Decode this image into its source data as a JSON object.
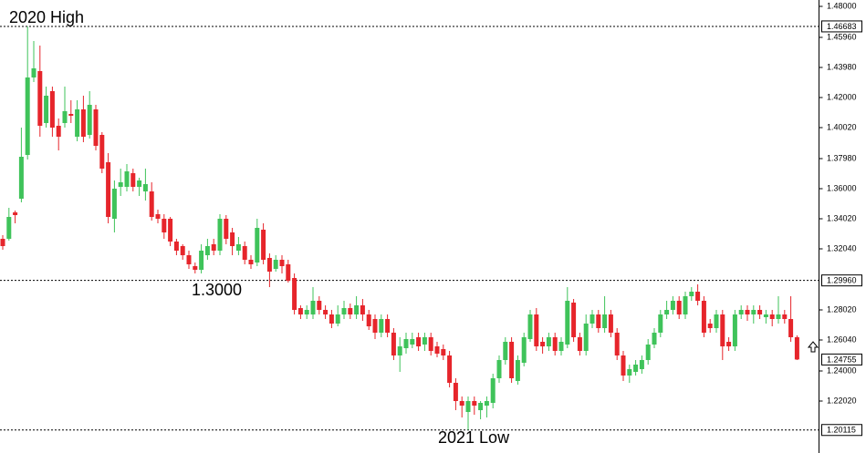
{
  "chart_data": {
    "type": "candlestick",
    "annotations": [
      {
        "text": "2020 High"
      },
      {
        "text": "1.3000"
      },
      {
        "text": "2021 Low"
      }
    ],
    "up_color": "#3fc35a",
    "down_color": "#e6252b",
    "ylim": [
      1.186,
      1.4842
    ],
    "yticks": [
      {
        "value": 1.48,
        "label": "1.48000"
      },
      {
        "value": 1.4596,
        "label": "1.45960"
      },
      {
        "value": 1.4398,
        "label": "1.43980"
      },
      {
        "value": 1.42,
        "label": "1.42000"
      },
      {
        "value": 1.4002,
        "label": "1.40020"
      },
      {
        "value": 1.3798,
        "label": "1.37980"
      },
      {
        "value": 1.36,
        "label": "1.36000"
      },
      {
        "value": 1.3402,
        "label": "1.34020"
      },
      {
        "value": 1.3204,
        "label": "1.32040"
      },
      {
        "value": 1.2802,
        "label": "1.28020"
      },
      {
        "value": 1.2604,
        "label": "1.26040"
      },
      {
        "value": 1.24,
        "label": "1.24000"
      },
      {
        "value": 1.2202,
        "label": "1.22020"
      }
    ],
    "levels": [
      {
        "value": 1.46683,
        "label": "1.46683"
      },
      {
        "value": 1.2996,
        "label": "1.29960"
      },
      {
        "value": 1.20115,
        "label": "1.20115"
      }
    ],
    "last_price": {
      "value": 1.24755,
      "label": "1.24755"
    },
    "open": [
      1.327,
      1.327,
      1.3444,
      1.3534,
      1.3822,
      1.4332,
      1.4374,
      1.4032,
      1.4242,
      1.4014,
      1.4032,
      1.4092,
      1.3942,
      1.4122,
      1.3954,
      1.4122,
      1.3954,
      1.3774,
      1.3402,
      1.3612,
      1.3612,
      1.3702,
      1.3612,
      1.3582,
      1.3582,
      1.3432,
      1.3402,
      1.3402,
      1.3252,
      1.3222,
      1.3162,
      1.309,
      1.3066,
      1.3162,
      1.3234,
      1.3192,
      1.3402,
      1.3312,
      1.3192,
      1.3222,
      1.3132,
      1.3114,
      1.333,
      1.3144,
      1.3072,
      1.3132,
      1.3102,
      1.3012,
      1.2814,
      1.2772,
      1.2772,
      1.2862,
      1.2802,
      1.2772,
      1.2712,
      1.2772,
      1.2814,
      1.2772,
      1.2832,
      1.2772,
      1.2742,
      1.2652,
      1.2742,
      1.2652,
      1.2502,
      1.255,
      1.2574,
      1.2622,
      1.2574,
      1.2622,
      1.2562,
      1.2544,
      1.2502,
      1.2322,
      1.2202,
      1.213,
      1.2202,
      1.2142,
      1.2172,
      1.219,
      1.2352,
      1.2472,
      1.2592,
      1.2334,
      1.2454,
      1.261,
      1.2772,
      1.2592,
      1.2562,
      1.2622,
      1.2532,
      1.2574,
      1.285,
      1.2622,
      1.2532,
      1.2712,
      1.2772,
      1.2682,
      1.2772,
      1.2652,
      1.2502,
      1.237,
      1.2394,
      1.2412,
      1.2472,
      1.2574,
      1.2652,
      1.2772,
      1.2802,
      1.2862,
      1.2772,
      1.2892,
      1.2922,
      1.2862,
      1.2712,
      1.2682,
      1.2772,
      1.2592,
      1.2562,
      1.2772,
      1.2802,
      1.2772,
      1.2802,
      1.2754,
      1.2772,
      1.2742,
      1.2772,
      1.2742,
      1.2622
    ],
    "high": [
      1.3294,
      1.3474,
      1.3456,
      1.4002,
      1.46683,
      1.4572,
      1.4542,
      1.4272,
      1.4272,
      1.4062,
      1.4272,
      1.4182,
      1.4182,
      1.4212,
      1.4242,
      1.4152,
      1.3972,
      1.3834,
      1.3654,
      1.3732,
      1.3762,
      1.3732,
      1.3672,
      1.3732,
      1.3642,
      1.3462,
      1.3432,
      1.3414,
      1.327,
      1.3234,
      1.3192,
      1.3114,
      1.3234,
      1.327,
      1.327,
      1.3432,
      1.3426,
      1.3342,
      1.3282,
      1.3252,
      1.3162,
      1.3402,
      1.3372,
      1.3174,
      1.3162,
      1.3162,
      1.3132,
      1.3042,
      1.2832,
      1.2832,
      1.2952,
      1.2892,
      1.2832,
      1.2802,
      1.2832,
      1.2862,
      1.2844,
      1.2892,
      1.2874,
      1.2802,
      1.2772,
      1.2772,
      1.2772,
      1.2682,
      1.2622,
      1.2652,
      1.2652,
      1.2652,
      1.2652,
      1.2652,
      1.2592,
      1.2574,
      1.2532,
      1.2352,
      1.2232,
      1.2232,
      1.2232,
      1.2202,
      1.2232,
      1.2382,
      1.2502,
      1.2622,
      1.2622,
      1.2502,
      1.2652,
      1.2802,
      1.2814,
      1.2622,
      1.2652,
      1.2652,
      1.2622,
      1.2952,
      1.2874,
      1.2652,
      1.2772,
      1.2802,
      1.2802,
      1.2892,
      1.2802,
      1.2682,
      1.2532,
      1.2442,
      1.2472,
      1.2502,
      1.261,
      1.2682,
      1.2802,
      1.2862,
      1.2892,
      1.2892,
      1.2922,
      1.2952,
      1.297,
      1.2892,
      1.2742,
      1.2802,
      1.2802,
      1.2622,
      1.2802,
      1.2832,
      1.2832,
      1.2832,
      1.2832,
      1.2802,
      1.2802,
      1.2892,
      1.2802,
      1.2892,
      1.2634
    ],
    "low": [
      1.3198,
      1.3258,
      1.3372,
      1.351,
      1.3792,
      1.4302,
      1.3942,
      1.4002,
      1.3942,
      1.3852,
      1.4002,
      1.4032,
      1.3912,
      1.3906,
      1.393,
      1.3852,
      1.3702,
      1.3372,
      1.3312,
      1.3552,
      1.3582,
      1.3582,
      1.3552,
      1.3522,
      1.339,
      1.3372,
      1.327,
      1.3222,
      1.3162,
      1.3132,
      1.3072,
      1.3042,
      1.3042,
      1.3132,
      1.3162,
      1.3162,
      1.3234,
      1.3162,
      1.3162,
      1.3102,
      1.3072,
      1.309,
      1.3102,
      1.2952,
      1.3054,
      1.3042,
      1.2982,
      1.2772,
      1.2742,
      1.2742,
      1.2742,
      1.2772,
      1.2742,
      1.2682,
      1.2694,
      1.2742,
      1.2742,
      1.2742,
      1.273,
      1.267,
      1.261,
      1.2622,
      1.2622,
      1.2472,
      1.2394,
      1.2514,
      1.255,
      1.2532,
      1.2532,
      1.2502,
      1.249,
      1.2472,
      1.2292,
      1.2142,
      1.2094,
      1.20115,
      1.2112,
      1.2082,
      1.2094,
      1.2154,
      1.2322,
      1.2442,
      1.2322,
      1.231,
      1.243,
      1.2592,
      1.2532,
      1.2514,
      1.2532,
      1.2502,
      1.2502,
      1.255,
      1.2592,
      1.2502,
      1.2502,
      1.2682,
      1.2652,
      1.2652,
      1.2622,
      1.2472,
      1.2334,
      1.2322,
      1.237,
      1.2382,
      1.2442,
      1.255,
      1.2622,
      1.2742,
      1.2772,
      1.2742,
      1.2742,
      1.2862,
      1.2832,
      1.2622,
      1.2652,
      1.2652,
      1.2472,
      1.2532,
      1.2532,
      1.2742,
      1.273,
      1.2712,
      1.2742,
      1.2712,
      1.2694,
      1.2712,
      1.2712,
      1.2592,
      1.2472
    ],
    "close": [
      1.3222,
      1.3414,
      1.3426,
      1.381,
      1.4332,
      1.4392,
      1.4014,
      1.4212,
      1.4002,
      1.3942,
      1.411,
      1.408,
      1.4122,
      1.3942,
      1.4152,
      1.3882,
      1.3732,
      1.3414,
      1.36,
      1.3642,
      1.3714,
      1.3612,
      1.3654,
      1.363,
      1.3414,
      1.3402,
      1.3312,
      1.3252,
      1.3192,
      1.3162,
      1.3102,
      1.3066,
      1.3192,
      1.3222,
      1.3192,
      1.3402,
      1.327,
      1.3222,
      1.3234,
      1.3132,
      1.3102,
      1.3342,
      1.3132,
      1.3054,
      1.3132,
      1.309,
      1.2994,
      1.2802,
      1.2772,
      1.2802,
      1.2862,
      1.2802,
      1.2772,
      1.2712,
      1.2772,
      1.2814,
      1.2772,
      1.2832,
      1.2772,
      1.2694,
      1.2652,
      1.2742,
      1.2652,
      1.2502,
      1.2562,
      1.261,
      1.261,
      1.2562,
      1.2622,
      1.2532,
      1.2514,
      1.2502,
      1.2322,
      1.2202,
      1.2172,
      1.2202,
      1.2172,
      1.219,
      1.2202,
      1.2352,
      1.2472,
      1.2592,
      1.2352,
      1.2472,
      1.2622,
      1.2772,
      1.2562,
      1.2562,
      1.2622,
      1.2532,
      1.2592,
      1.2862,
      1.2622,
      1.2532,
      1.2712,
      1.2772,
      1.2682,
      1.2772,
      1.2652,
      1.2502,
      1.237,
      1.2412,
      1.2442,
      1.2472,
      1.2574,
      1.2652,
      1.2772,
      1.2802,
      1.2862,
      1.2772,
      1.2892,
      1.2922,
      1.2862,
      1.2652,
      1.2682,
      1.2772,
      1.2562,
      1.2562,
      1.2772,
      1.2802,
      1.2772,
      1.2802,
      1.2772,
      1.2772,
      1.2742,
      1.2772,
      1.2742,
      1.2622,
      1.24755
    ]
  }
}
